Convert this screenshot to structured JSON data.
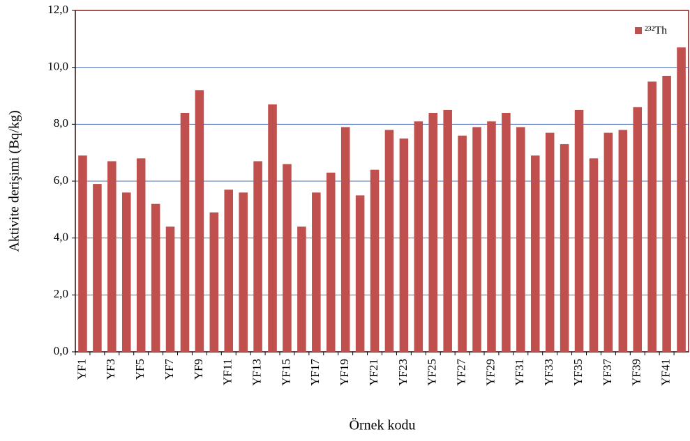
{
  "chart_data": {
    "type": "bar",
    "xlabel": "Örnek kodu",
    "ylabel": "Aktivite derişimi (Bq/kg)",
    "categories": [
      "YF1",
      null,
      "YF3",
      null,
      "YF5",
      null,
      "YF7",
      null,
      "YF9",
      null,
      "YF11",
      null,
      "YF13",
      null,
      "YF15",
      null,
      "YF17",
      null,
      "YF19",
      null,
      "YF21",
      null,
      "YF23",
      null,
      "YF25",
      null,
      "YF27",
      null,
      "YF29",
      null,
      "YF31",
      null,
      "YF33",
      null,
      "YF35",
      null,
      "YF37",
      null,
      "YF39",
      null,
      "YF41",
      null
    ],
    "series": [
      {
        "name": "²³²Th",
        "color": "#c0504d",
        "values": [
          6.9,
          5.9,
          6.7,
          5.6,
          6.8,
          5.2,
          4.4,
          8.4,
          9.2,
          4.9,
          5.7,
          5.6,
          6.7,
          8.7,
          6.6,
          4.4,
          5.6,
          6.3,
          7.9,
          5.5,
          6.4,
          7.8,
          7.5,
          8.1,
          8.4,
          8.5,
          7.6,
          7.9,
          8.1,
          8.4,
          7.9,
          6.9,
          7.7,
          7.3,
          8.5,
          6.8,
          7.7,
          7.8,
          8.6,
          9.5,
          9.7,
          10.7
        ]
      }
    ],
    "ylim": [
      0,
      12
    ],
    "yticks": [
      {
        "value": 0,
        "label": "0,0"
      },
      {
        "value": 2,
        "label": "2,0"
      },
      {
        "value": 4,
        "label": "4,0"
      },
      {
        "value": 6,
        "label": "6,0"
      },
      {
        "value": 8,
        "label": "8,0"
      },
      {
        "value": 10,
        "label": "10,0"
      },
      {
        "value": 12,
        "label": "12,0"
      }
    ],
    "grid": true,
    "legend": "top-right"
  }
}
